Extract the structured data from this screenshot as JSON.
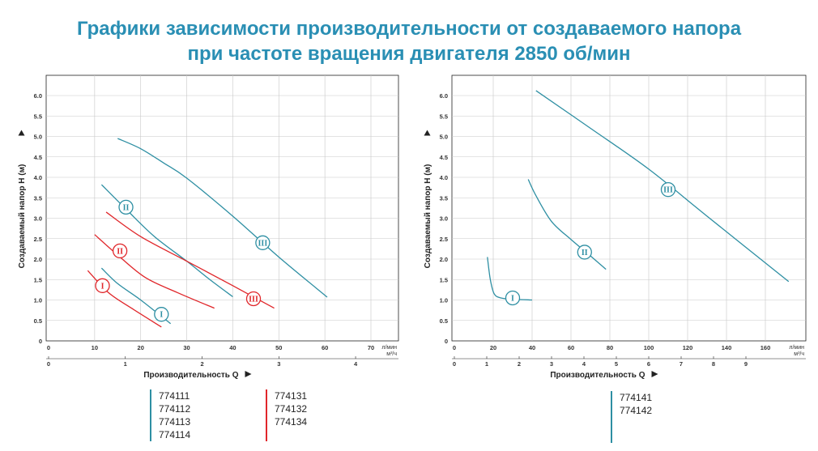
{
  "title": {
    "line1": "Графики зависимости производительности от создаваемого напора",
    "line2": "при частоте вращения двигателя 2850 об/мин"
  },
  "colors": {
    "title": "#2a8fb4",
    "teal": "#2e8fa3",
    "red": "#e0262a",
    "grid": "#c8c8c8",
    "axis": "#222222"
  },
  "chart_data": [
    {
      "type": "line",
      "ylabel": "Создаваемый напор Н (м)",
      "xlabel": "Производительность Q",
      "ylim": [
        0,
        6.5
      ],
      "xlim": [
        0,
        75
      ],
      "y_ticks": [
        "0",
        "0.5",
        "1.0",
        "1.5",
        "2.0",
        "2.5",
        "3.0",
        "3.5",
        "4.0",
        "4.5",
        "5.0",
        "5.5",
        "6.0"
      ],
      "y_tick_values": [
        0,
        0.5,
        1,
        1.5,
        2,
        2.5,
        3,
        3.5,
        4,
        4.5,
        5,
        5.5,
        6
      ],
      "x_ticks": [
        "0",
        "10",
        "20",
        "30",
        "40",
        "50",
        "60",
        "70"
      ],
      "x_tick_values": [
        0,
        10,
        20,
        30,
        40,
        50,
        60,
        70
      ],
      "x_unit": "л/мин",
      "x2_ticks": [
        "0",
        "1",
        "2",
        "3",
        "4"
      ],
      "x2_unit": "м³/ч",
      "x2_factor": 16.667,
      "grid": true,
      "series": [
        {
          "name": "I",
          "color": "teal",
          "x": [
            11.5,
            15,
            20,
            26.5
          ],
          "y": [
            1.78,
            1.4,
            1.0,
            0.42
          ],
          "label_at": [
            24.5,
            0.65
          ]
        },
        {
          "name": "II",
          "color": "teal",
          "x": [
            11.5,
            17,
            23,
            30,
            35,
            40
          ],
          "y": [
            3.82,
            3.2,
            2.55,
            1.95,
            1.5,
            1.08
          ],
          "label_at": [
            16.8,
            3.27
          ]
        },
        {
          "name": "III",
          "color": "teal",
          "x": [
            15,
            20,
            25,
            30,
            40,
            50,
            60.5
          ],
          "y": [
            4.95,
            4.7,
            4.35,
            3.98,
            3.05,
            2.05,
            1.07
          ],
          "label_at": [
            46.5,
            2.4
          ]
        },
        {
          "name": "I",
          "color": "red",
          "x": [
            8.5,
            13,
            18,
            24.5
          ],
          "y": [
            1.72,
            1.18,
            0.8,
            0.34
          ],
          "label_at": [
            11.7,
            1.35
          ]
        },
        {
          "name": "II",
          "color": "red",
          "x": [
            10,
            15,
            21,
            28,
            36
          ],
          "y": [
            2.6,
            2.1,
            1.55,
            1.18,
            0.8
          ],
          "label_at": [
            15.5,
            2.2
          ]
        },
        {
          "name": "III",
          "color": "red",
          "x": [
            12.5,
            20,
            30,
            40,
            49
          ],
          "y": [
            3.15,
            2.55,
            1.95,
            1.35,
            0.8
          ],
          "label_at": [
            44.5,
            1.03
          ]
        }
      ]
    },
    {
      "type": "line",
      "ylabel": "Создаваемый напор Н (м)",
      "xlabel": "Производительность Q",
      "ylim": [
        0,
        6.5
      ],
      "xlim": [
        0,
        180
      ],
      "y_ticks": [
        "0",
        "0.5",
        "1.0",
        "1.5",
        "2.0",
        "2.5",
        "3.0",
        "3.5",
        "4.0",
        "4.5",
        "5.0",
        "5.5",
        "6.0"
      ],
      "y_tick_values": [
        0,
        0.5,
        1,
        1.5,
        2,
        2.5,
        3,
        3.5,
        4,
        4.5,
        5,
        5.5,
        6
      ],
      "x_ticks": [
        "0",
        "20",
        "40",
        "60",
        "80",
        "100",
        "120",
        "140",
        "160"
      ],
      "x_tick_values": [
        0,
        20,
        40,
        60,
        80,
        100,
        120,
        140,
        160
      ],
      "x_unit": "л/мин",
      "x2_ticks": [
        "0",
        "1",
        "2",
        "3",
        "4",
        "5",
        "6",
        "7",
        "8",
        "9"
      ],
      "x2_unit": "м³/ч",
      "x2_factor": 16.667,
      "grid": true,
      "series": [
        {
          "name": "I",
          "color": "teal",
          "x": [
            17,
            18.5,
            20.5,
            24,
            30,
            40
          ],
          "y": [
            2.05,
            1.5,
            1.15,
            1.05,
            1.02,
            1.0
          ],
          "label_at": [
            30,
            1.05
          ]
        },
        {
          "name": "II",
          "color": "teal",
          "x": [
            38,
            42,
            50,
            60,
            70,
            78
          ],
          "y": [
            3.95,
            3.55,
            2.92,
            2.48,
            2.08,
            1.75
          ],
          "label_at": [
            67,
            2.17
          ]
        },
        {
          "name": "III",
          "color": "teal",
          "x": [
            42,
            70,
            100,
            130,
            172
          ],
          "y": [
            6.12,
            5.2,
            4.2,
            3.05,
            1.45
          ],
          "label_at": [
            110,
            3.7
          ]
        }
      ]
    }
  ],
  "codes": {
    "teal_group": [
      "774111",
      "774112",
      "774113",
      "774114"
    ],
    "red_group": [
      "774131",
      "774132",
      "774134"
    ],
    "right_group": [
      "774141",
      "774142"
    ]
  }
}
